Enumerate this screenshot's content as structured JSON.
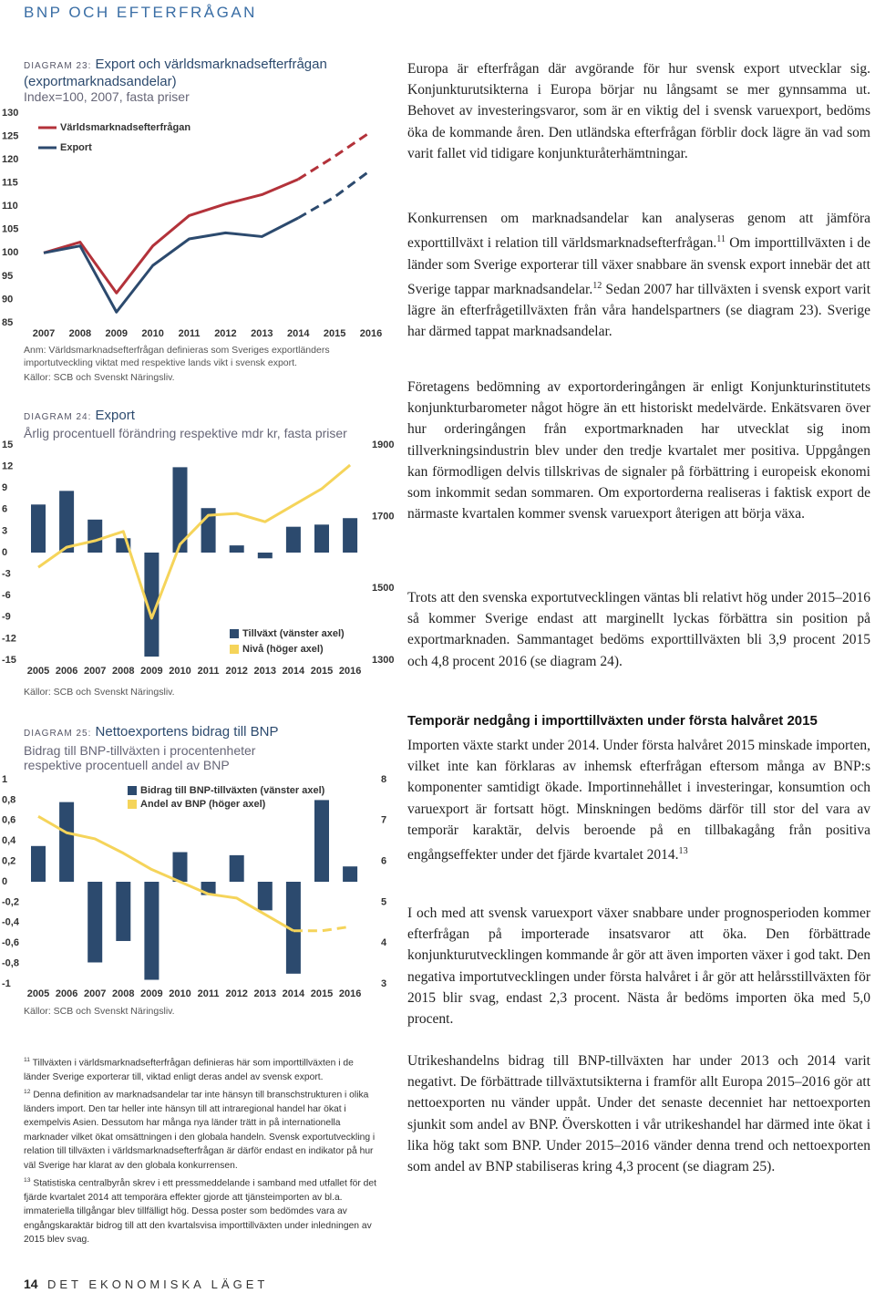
{
  "header": {
    "section": "BNP OCH EFTERFRÅGAN"
  },
  "chart_data": [
    {
      "type": "line",
      "label": "DIAGRAM 23:",
      "title": "Export och världsmarknadsefterfrågan (exportmarknadsandelar)",
      "subtitle": "Index=100, 2007, fasta priser",
      "categories": [
        "2007",
        "2008",
        "2009",
        "2010",
        "2011",
        "2012",
        "2013",
        "2014",
        "2015",
        "2016"
      ],
      "series": [
        {
          "name": "Världsmarknadsefterfrågan",
          "type": "line",
          "color": "#b3323a",
          "values": [
            100,
            102.3,
            91.4,
            101.5,
            108,
            110.5,
            112.5,
            115.8,
            120.7,
            126
          ]
        },
        {
          "name": "Export",
          "type": "line",
          "color": "#2c4a6e",
          "values": [
            100,
            101.5,
            87.3,
            97.3,
            103,
            104.3,
            103.5,
            107.5,
            112,
            117.8
          ]
        }
      ],
      "ylim": [
        85,
        130
      ],
      "yticks": [
        85,
        90,
        95,
        100,
        105,
        110,
        115,
        120,
        125,
        130
      ],
      "forecast_from": "2014",
      "note": "Anm: Världsmarknadsefterfrågan definieras som Sveriges exportländers importutveckling viktat med respektive lands vikt i svensk export.",
      "source": "Källor: SCB och Svenskt Näringsliv."
    },
    {
      "type": "bar",
      "label": "DIAGRAM 24:",
      "title": "Export",
      "subtitle": "Årlig procentuell förändring respektive mdr kr, fasta priser",
      "categories": [
        "2005",
        "2006",
        "2007",
        "2008",
        "2009",
        "2010",
        "2011",
        "2012",
        "2013",
        "2014",
        "2015",
        "2016"
      ],
      "series": [
        {
          "name": "Tillväxt (vänster axel)",
          "type": "bar",
          "color": "#2c4a6e",
          "values": [
            6.7,
            8.6,
            4.6,
            2.0,
            -14.5,
            11.9,
            6.2,
            1.0,
            -0.8,
            3.6,
            3.9,
            4.8
          ]
        },
        {
          "name": "Nivå (höger axel)",
          "type": "line",
          "axis": "y2",
          "color": "#f5d45a",
          "values": [
            1559,
            1615,
            1633,
            1659,
            1417,
            1623,
            1704,
            1709,
            1686,
            1732,
            1778,
            1844
          ]
        }
      ],
      "ylim": [
        -15,
        15
      ],
      "yticks": [
        -15,
        -12,
        -9,
        -6,
        -3,
        0,
        3,
        6,
        9,
        12,
        15
      ],
      "y2lim": [
        1300,
        1900
      ],
      "y2ticks": [
        1300,
        1500,
        1700,
        1900
      ],
      "source": "Källor: SCB och Svenskt Näringsliv."
    },
    {
      "type": "bar",
      "label": "DIAGRAM 25:",
      "title": "Nettoexportens bidrag till BNP",
      "subtitle": "Bidrag till BNP-tillväxten i procentenheter respektive procentuell andel av BNP",
      "categories": [
        "2005",
        "2006",
        "2007",
        "2008",
        "2009",
        "2010",
        "2011",
        "2012",
        "2013",
        "2014",
        "2015",
        "2016"
      ],
      "series": [
        {
          "name": "Bidrag till BNP-tillväxten (vänster axel)",
          "type": "bar",
          "color": "#2c4a6e",
          "values": [
            0.35,
            0.78,
            -0.79,
            -0.58,
            -0.96,
            0.29,
            -0.13,
            0.26,
            -0.28,
            -0.9,
            0.8,
            0.15
          ]
        },
        {
          "name": "Andel av BNP (höger axel)",
          "type": "line",
          "axis": "y2",
          "color": "#f5d45a",
          "values": [
            7.1,
            6.7,
            6.55,
            6.2,
            5.8,
            5.5,
            5.2,
            5.1,
            4.7,
            4.3,
            4.3,
            4.4
          ]
        }
      ],
      "ylim": [
        -1,
        1
      ],
      "yticks": [
        -1,
        {
          "value": -0.8,
          "label": "-0,8"
        },
        {
          "value": -0.6,
          "label": "-0,6"
        },
        {
          "value": -0.4,
          "label": "-0,4"
        },
        {
          "value": -0.2,
          "label": "-0,2"
        },
        0,
        {
          "value": 0.2,
          "label": "0,2"
        },
        {
          "value": 0.4,
          "label": "0,4"
        },
        {
          "value": 0.6,
          "label": "0,6"
        },
        {
          "value": 0.8,
          "label": "0,8"
        },
        1
      ],
      "y2lim": [
        3,
        8
      ],
      "y2ticks": [
        3,
        4,
        5,
        6,
        7,
        8
      ],
      "forecast_from": "2014",
      "source": "Källor: SCB och Svenskt Näringsliv."
    }
  ],
  "text_blocks": [
    {
      "paragraph": [
        "Europa är efterfrågan där avgörande för hur svensk export utvecklar sig. Konjunkturutsikterna i Europa börjar nu långsamt se mer gynnsamma ut. Behovet av investeringsvaror, som är en viktig del i svensk varuexport, bedöms öka de kommande åren. Den utländska efterfrågan förblir dock lägre än vad som varit fallet vid tidigare konjunkturåterhämtningar."
      ]
    },
    {
      "paragraph": [
        "Konkurrensen om marknadsandelar kan analyseras genom att jämföra exporttillväxt i relation till världsmarknadsefterfrågan.",
        {
          "sup": "11"
        },
        " Om importtillväxten i de länder som Sverige exporterar till växer snabbare än svensk export innebär det att Sverige tappar marknadsandelar.",
        {
          "sup": "12"
        },
        " Sedan 2007 har tillväxten i svensk export varit lägre än efterfrågetillväxten från våra handelspartners (se diagram 23). Sverige har därmed tappat marknadsandelar."
      ]
    },
    {
      "paragraph": [
        "Företagens bedömning av exportorderingången är enligt Konjunkturinstitutets konjunkturbarometer något högre än ett historiskt medelvärde. Enkätsvaren över hur orderingången från exportmarknaden har utvecklat sig inom tillverkningsindustrin blev under den tredje kvartalet mer positiva. Uppgången kan förmodligen delvis tillskrivas de signaler på förbättring i europeisk ekonomi som inkommit sedan sommaren. Om exportorderna realiseras i faktisk export de närmaste kvartalen kommer svensk varuexport återigen att börja växa."
      ]
    },
    {
      "paragraph": [
        "Trots att den svenska exportutvecklingen väntas bli relativt hög under 2015–2016 så kommer Sverige endast att marginellt lyckas förbättra sin position på exportmarknaden. Sammantaget bedöms exporttillväxten bli 3,9 procent 2015 och 4,8 procent 2016 (se diagram 24)."
      ]
    },
    {
      "heading": "Temporär nedgång i importtillväxten under första halvåret 2015"
    },
    {
      "paragraph": [
        "Importen växte starkt under 2014. Under första halvåret 2015 minskade importen, vilket inte kan förklaras av inhemsk efterfrågan eftersom många av BNP:s komponenter samtidigt ökade. Importinnehållet i investeringar, konsumtion och varuexport är fortsatt högt. Minskningen bedöms därför till stor del vara av temporär karaktär, delvis beroende på en tillbakagång från positiva engångseffekter under det fjärde kvartalet 2014.",
        {
          "sup": "13"
        }
      ]
    },
    {
      "paragraph": [
        "I och med att svensk varuexport växer snabbare under prognosperioden kommer efterfrågan på importerade insatsvaror att öka. Den förbättrade konjunkturutvecklingen kommande år gör att även importen växer i god takt. Den negativa importutvecklingen under första halvåret i år gör att helårsstillväxten för 2015 blir svag, endast 2,3 procent. Nästa år bedöms importen öka med 5,0 procent."
      ]
    },
    {
      "paragraph": [
        "Utrikeshandelns bidrag till BNP-tillväxten har under 2013 och 2014 varit negativt. De förbättrade tillväxtutsikterna i framför allt Europa 2015–2016 gör att nettoexporten nu vänder uppåt. Under det senaste decenniet har nettoexporten sjunkit som andel av BNP. Överskotten i vår utrikeshandel har därmed inte ökat i lika hög takt som BNP. Under 2015–2016 vänder denna trend och nettoexporten som andel av BNP stabiliseras kring 4,3 procent (se diagram 25)."
      ]
    }
  ],
  "footnotes": [
    {
      "number": "11",
      "text": "Tillväxten i världsmarknadsefterfrågan definieras här som importtillväxten i de länder Sverige exporterar till, viktad enligt deras andel av svensk export."
    },
    {
      "number": "12",
      "text": "Denna definition av marknadsandelar tar inte hänsyn till branschstrukturen i olika länders import. Den tar heller inte hänsyn till att intraregional handel har ökat i exempelvis Asien. Dessutom har många nya länder trätt in på internationella marknader vilket ökat omsättningen i den globala handeln. Svensk exportutveckling i relation till tillväxten i världsmarknadsefterfrågan är därför endast en indikator på hur väl Sverige har klarat av den globala konkurrensen."
    },
    {
      "number": "13",
      "text": "Statistiska centralbyrån skrev i ett pressmeddelande i samband med utfallet för det fjärde kvartalet 2014 att temporära effekter gjorde att tjänsteimporten av bl.a. immateriella tillgångar blev tillfälligt hög. Dessa poster som bedömdes vara av engångskaraktär bidrog till att den kvartalsvisa importtillväxten under inledningen av 2015 blev svag."
    }
  ],
  "footer": {
    "page": "14",
    "title": "DET EKONOMISKA LÄGET"
  }
}
